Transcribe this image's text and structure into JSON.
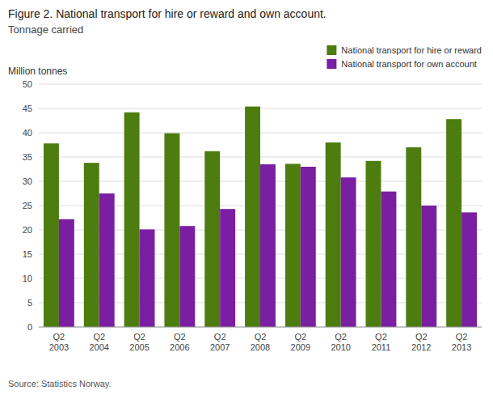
{
  "chart_data": {
    "type": "bar",
    "title": "Figure 2. National transport for hire or reward and own account.",
    "subtitle": "Tonnage carried",
    "ylabel": "Million tonnes",
    "source": "Source: Statistics Norway.",
    "categories": [
      "Q2\n2003",
      "Q2\n2004",
      "Q2\n2005",
      "Q2\n2006",
      "Q2\n2007",
      "Q2\n2008",
      "Q2\n2009",
      "Q2\n2010",
      "Q2\n2011",
      "Q2\n2012",
      "Q2\n2013"
    ],
    "series": [
      {
        "name": "National transport for hire or reward",
        "color": "#4d7c0f",
        "values": [
          37.8,
          33.8,
          44.2,
          39.9,
          36.2,
          45.4,
          33.6,
          38.0,
          34.2,
          37.0,
          42.8
        ]
      },
      {
        "name": "National transport for own account",
        "color": "#7b1fa2",
        "values": [
          22.2,
          27.5,
          20.1,
          20.8,
          24.3,
          33.5,
          33.0,
          30.8,
          27.9,
          25.0,
          23.6
        ]
      }
    ],
    "ylim": [
      0,
      50
    ],
    "yticks": [
      0,
      5,
      10,
      15,
      20,
      25,
      30,
      35,
      40,
      45,
      50
    ],
    "grid": true,
    "legend": "upper right"
  }
}
